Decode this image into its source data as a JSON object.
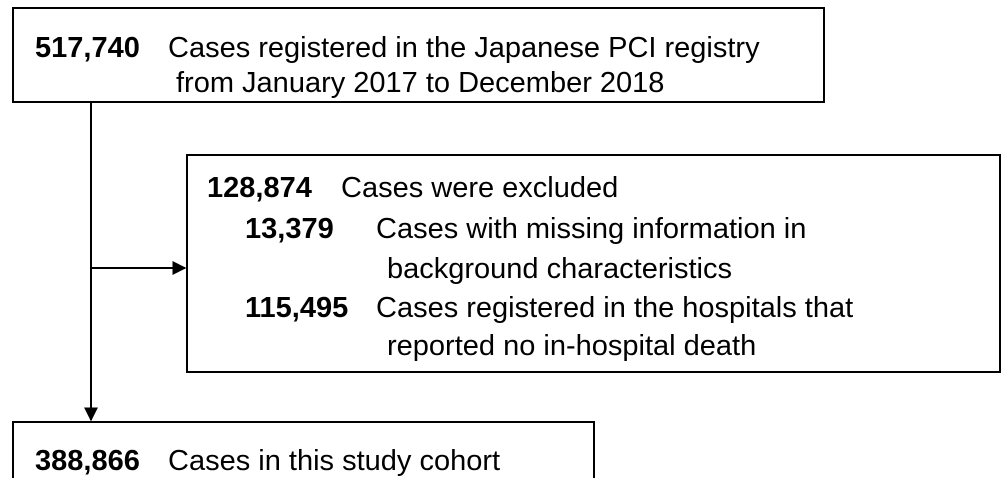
{
  "nodes": [
    {
      "count": "517,740",
      "lines": [
        "Cases registered in the Japanese PCI registry",
        "from January 2017 to December 2018"
      ]
    },
    {
      "count": "128,874",
      "label": "Cases were excluded",
      "items": [
        {
          "count": "13,379",
          "lines": [
            "Cases with missing information in",
            "background characteristics"
          ]
        },
        {
          "count": "115,495",
          "lines": [
            "Cases registered in the hospitals that",
            "reported no in-hospital death"
          ]
        }
      ]
    },
    {
      "count": "388,866",
      "lines": [
        "Cases in this study cohort"
      ]
    }
  ]
}
